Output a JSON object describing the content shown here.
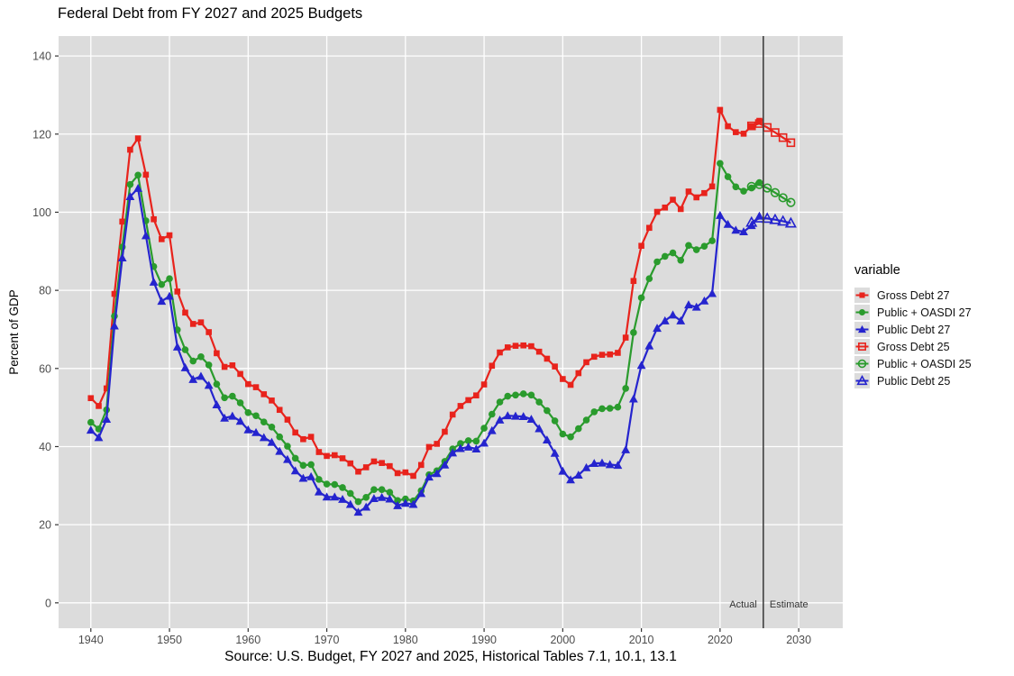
{
  "chart_data": {
    "type": "line",
    "title": "Federal Debt from FY 2027 and 2025 Budgets",
    "caption": "Source: U.S. Budget, FY 2027 and 2025, Historical Tables 7.1, 10.1, 13.1",
    "xlabel": "",
    "ylabel": "Percent of GDP",
    "xlim": [
      1935.9,
      2035.6
    ],
    "ylim": [
      -6.5,
      145.1
    ],
    "x_ticks": [
      1940,
      1950,
      1960,
      1970,
      1980,
      1990,
      2000,
      2010,
      2020,
      2030
    ],
    "y_ticks": [
      0,
      20,
      40,
      60,
      80,
      100,
      120,
      140
    ],
    "grid": true,
    "legend_position": "right",
    "legend_title": "variable",
    "panel_bg": "#DCDCDC",
    "grid_color": "#FFFFFF",
    "axis_text_color": "#4D4D4D",
    "divider": {
      "x": 2025.5,
      "left_label": "Actual",
      "right_label": "Estimate",
      "color": "#404040"
    },
    "series": [
      {
        "name": "Gross Debt 27",
        "color": "#E8231C",
        "marker": "square",
        "variant": "solid",
        "points": [
          [
            1940,
            52.4
          ],
          [
            1941,
            50.4
          ],
          [
            1942,
            54.9
          ],
          [
            1943,
            79.1
          ],
          [
            1944,
            97.6
          ],
          [
            1945,
            116.0
          ],
          [
            1946,
            118.9
          ],
          [
            1947,
            109.6
          ],
          [
            1948,
            98.2
          ],
          [
            1949,
            93.1
          ],
          [
            1950,
            94.1
          ],
          [
            1951,
            79.7
          ],
          [
            1952,
            74.3
          ],
          [
            1953,
            71.4
          ],
          [
            1954,
            71.8
          ],
          [
            1955,
            69.3
          ],
          [
            1956,
            63.9
          ],
          [
            1957,
            60.4
          ],
          [
            1958,
            60.8
          ],
          [
            1959,
            58.6
          ],
          [
            1960,
            56.0
          ],
          [
            1961,
            55.2
          ],
          [
            1962,
            53.4
          ],
          [
            1963,
            51.8
          ],
          [
            1964,
            49.4
          ],
          [
            1965,
            46.9
          ],
          [
            1966,
            43.6
          ],
          [
            1967,
            41.9
          ],
          [
            1968,
            42.5
          ],
          [
            1969,
            38.6
          ],
          [
            1970,
            37.6
          ],
          [
            1971,
            37.8
          ],
          [
            1972,
            37.0
          ],
          [
            1973,
            35.7
          ],
          [
            1974,
            33.6
          ],
          [
            1975,
            34.7
          ],
          [
            1976,
            36.2
          ],
          [
            1977,
            35.8
          ],
          [
            1978,
            35.0
          ],
          [
            1979,
            33.2
          ],
          [
            1980,
            33.4
          ],
          [
            1981,
            32.5
          ],
          [
            1982,
            35.3
          ],
          [
            1983,
            39.9
          ],
          [
            1984,
            40.7
          ],
          [
            1985,
            43.8
          ],
          [
            1986,
            48.2
          ],
          [
            1987,
            50.4
          ],
          [
            1988,
            51.9
          ],
          [
            1989,
            53.1
          ],
          [
            1990,
            55.9
          ],
          [
            1991,
            60.7
          ],
          [
            1992,
            64.1
          ],
          [
            1993,
            65.4
          ],
          [
            1994,
            65.8
          ],
          [
            1995,
            65.9
          ],
          [
            1996,
            65.7
          ],
          [
            1997,
            64.3
          ],
          [
            1998,
            62.5
          ],
          [
            1999,
            60.5
          ],
          [
            2000,
            57.3
          ],
          [
            2001,
            55.8
          ],
          [
            2002,
            58.8
          ],
          [
            2003,
            61.6
          ],
          [
            2004,
            63.0
          ],
          [
            2005,
            63.5
          ],
          [
            2006,
            63.6
          ],
          [
            2007,
            64.0
          ],
          [
            2008,
            67.9
          ],
          [
            2009,
            82.4
          ],
          [
            2010,
            91.4
          ],
          [
            2011,
            96.0
          ],
          [
            2012,
            100.1
          ],
          [
            2013,
            101.2
          ],
          [
            2014,
            103.2
          ],
          [
            2015,
            100.8
          ],
          [
            2016,
            105.3
          ],
          [
            2017,
            103.8
          ],
          [
            2018,
            104.9
          ],
          [
            2019,
            106.6
          ],
          [
            2020,
            126.2
          ],
          [
            2021,
            122.0
          ],
          [
            2022,
            120.5
          ],
          [
            2023,
            120.1
          ],
          [
            2024,
            122.0
          ],
          [
            2025,
            123.4
          ]
        ]
      },
      {
        "name": "Public + OASDI 27",
        "color": "#2A9B2D",
        "marker": "circle",
        "variant": "solid",
        "points": [
          [
            1940,
            46.2
          ],
          [
            1941,
            44.5
          ],
          [
            1942,
            49.4
          ],
          [
            1943,
            73.4
          ],
          [
            1944,
            91.1
          ],
          [
            1945,
            107.1
          ],
          [
            1946,
            109.5
          ],
          [
            1947,
            97.8
          ],
          [
            1948,
            86.1
          ],
          [
            1949,
            81.5
          ],
          [
            1950,
            83.0
          ],
          [
            1951,
            69.9
          ],
          [
            1952,
            64.8
          ],
          [
            1953,
            61.9
          ],
          [
            1954,
            63.0
          ],
          [
            1955,
            60.9
          ],
          [
            1956,
            56.0
          ],
          [
            1957,
            52.5
          ],
          [
            1958,
            52.9
          ],
          [
            1959,
            51.2
          ],
          [
            1960,
            48.7
          ],
          [
            1961,
            47.9
          ],
          [
            1962,
            46.3
          ],
          [
            1963,
            45.0
          ],
          [
            1964,
            42.5
          ],
          [
            1965,
            40.1
          ],
          [
            1966,
            37.0
          ],
          [
            1967,
            35.2
          ],
          [
            1968,
            35.4
          ],
          [
            1969,
            31.6
          ],
          [
            1970,
            30.4
          ],
          [
            1971,
            30.3
          ],
          [
            1972,
            29.5
          ],
          [
            1973,
            28.0
          ],
          [
            1974,
            25.9
          ],
          [
            1975,
            27.0
          ],
          [
            1976,
            29.0
          ],
          [
            1977,
            29.0
          ],
          [
            1978,
            28.3
          ],
          [
            1979,
            26.2
          ],
          [
            1980,
            26.6
          ],
          [
            1981,
            26.1
          ],
          [
            1982,
            28.7
          ],
          [
            1983,
            32.8
          ],
          [
            1984,
            33.8
          ],
          [
            1985,
            36.2
          ],
          [
            1986,
            39.4
          ],
          [
            1987,
            40.8
          ],
          [
            1988,
            41.5
          ],
          [
            1989,
            41.4
          ],
          [
            1990,
            44.7
          ],
          [
            1991,
            48.3
          ],
          [
            1992,
            51.4
          ],
          [
            1993,
            52.9
          ],
          [
            1994,
            53.2
          ],
          [
            1995,
            53.5
          ],
          [
            1996,
            53.2
          ],
          [
            1997,
            51.4
          ],
          [
            1998,
            49.2
          ],
          [
            1999,
            46.6
          ],
          [
            2000,
            43.2
          ],
          [
            2001,
            42.5
          ],
          [
            2002,
            44.6
          ],
          [
            2003,
            46.8
          ],
          [
            2004,
            48.9
          ],
          [
            2005,
            49.7
          ],
          [
            2006,
            49.8
          ],
          [
            2007,
            50.1
          ],
          [
            2008,
            54.9
          ],
          [
            2009,
            69.2
          ],
          [
            2010,
            78.1
          ],
          [
            2011,
            83.0
          ],
          [
            2012,
            87.3
          ],
          [
            2013,
            88.7
          ],
          [
            2014,
            89.6
          ],
          [
            2015,
            87.7
          ],
          [
            2016,
            91.5
          ],
          [
            2017,
            90.4
          ],
          [
            2018,
            91.3
          ],
          [
            2019,
            92.7
          ],
          [
            2020,
            112.5
          ],
          [
            2021,
            109.1
          ],
          [
            2022,
            106.5
          ],
          [
            2023,
            105.4
          ],
          [
            2024,
            106.2
          ],
          [
            2025,
            107.6
          ]
        ]
      },
      {
        "name": "Public Debt 27",
        "color": "#2524CE",
        "marker": "triangle",
        "variant": "solid",
        "points": [
          [
            1940,
            44.2
          ],
          [
            1941,
            42.3
          ],
          [
            1942,
            47.0
          ],
          [
            1943,
            70.9
          ],
          [
            1944,
            88.3
          ],
          [
            1945,
            104.0
          ],
          [
            1946,
            106.1
          ],
          [
            1947,
            94.0
          ],
          [
            1948,
            82.1
          ],
          [
            1949,
            77.2
          ],
          [
            1950,
            78.5
          ],
          [
            1951,
            65.5
          ],
          [
            1952,
            60.2
          ],
          [
            1953,
            57.2
          ],
          [
            1954,
            58.0
          ],
          [
            1955,
            55.7
          ],
          [
            1956,
            50.7
          ],
          [
            1957,
            47.3
          ],
          [
            1958,
            47.8
          ],
          [
            1959,
            46.5
          ],
          [
            1960,
            44.3
          ],
          [
            1961,
            43.6
          ],
          [
            1962,
            42.3
          ],
          [
            1963,
            41.1
          ],
          [
            1964,
            38.8
          ],
          [
            1965,
            36.7
          ],
          [
            1966,
            33.8
          ],
          [
            1967,
            31.9
          ],
          [
            1968,
            32.3
          ],
          [
            1969,
            28.4
          ],
          [
            1970,
            27.1
          ],
          [
            1971,
            27.1
          ],
          [
            1972,
            26.5
          ],
          [
            1973,
            25.2
          ],
          [
            1974,
            23.2
          ],
          [
            1975,
            24.5
          ],
          [
            1976,
            26.7
          ],
          [
            1977,
            27.0
          ],
          [
            1978,
            26.6
          ],
          [
            1979,
            24.9
          ],
          [
            1980,
            25.5
          ],
          [
            1981,
            25.2
          ],
          [
            1982,
            28.0
          ],
          [
            1983,
            32.2
          ],
          [
            1984,
            33.1
          ],
          [
            1985,
            35.3
          ],
          [
            1986,
            38.4
          ],
          [
            1987,
            39.5
          ],
          [
            1988,
            39.9
          ],
          [
            1989,
            39.4
          ],
          [
            1990,
            40.9
          ],
          [
            1991,
            44.1
          ],
          [
            1992,
            46.8
          ],
          [
            1993,
            47.9
          ],
          [
            1994,
            47.8
          ],
          [
            1995,
            47.7
          ],
          [
            1996,
            47.0
          ],
          [
            1997,
            44.6
          ],
          [
            1998,
            41.7
          ],
          [
            1999,
            38.3
          ],
          [
            2000,
            33.7
          ],
          [
            2001,
            31.5
          ],
          [
            2002,
            32.7
          ],
          [
            2003,
            34.6
          ],
          [
            2004,
            35.7
          ],
          [
            2005,
            35.8
          ],
          [
            2006,
            35.4
          ],
          [
            2007,
            35.2
          ],
          [
            2008,
            39.2
          ],
          [
            2009,
            52.2
          ],
          [
            2010,
            60.8
          ],
          [
            2011,
            65.8
          ],
          [
            2012,
            70.3
          ],
          [
            2013,
            72.2
          ],
          [
            2014,
            73.7
          ],
          [
            2015,
            72.2
          ],
          [
            2016,
            76.3
          ],
          [
            2017,
            75.7
          ],
          [
            2018,
            77.3
          ],
          [
            2019,
            79.2
          ],
          [
            2020,
            99.2
          ],
          [
            2021,
            96.9
          ],
          [
            2022,
            95.4
          ],
          [
            2023,
            95.0
          ],
          [
            2024,
            96.6
          ],
          [
            2025,
            99.0
          ]
        ]
      },
      {
        "name": "Gross Debt 25",
        "color": "#E8231C",
        "marker": "square",
        "variant": "open",
        "points": [
          [
            2024,
            122.1
          ],
          [
            2025,
            122.7
          ],
          [
            2026,
            121.7
          ],
          [
            2027,
            120.4
          ],
          [
            2028,
            119.1
          ],
          [
            2029,
            117.8
          ]
        ]
      },
      {
        "name": "Public + OASDI 25",
        "color": "#2A9B2D",
        "marker": "circle",
        "variant": "open",
        "points": [
          [
            2024,
            106.6
          ],
          [
            2025,
            107.1
          ],
          [
            2026,
            106.2
          ],
          [
            2027,
            105.0
          ],
          [
            2028,
            103.7
          ],
          [
            2029,
            102.5
          ]
        ]
      },
      {
        "name": "Public Debt 25",
        "color": "#2524CE",
        "marker": "triangle",
        "variant": "open",
        "points": [
          [
            2024,
            97.4
          ],
          [
            2025,
            98.5
          ],
          [
            2026,
            98.4
          ],
          [
            2027,
            98.1
          ],
          [
            2028,
            97.7
          ],
          [
            2029,
            97.2
          ]
        ]
      }
    ]
  }
}
